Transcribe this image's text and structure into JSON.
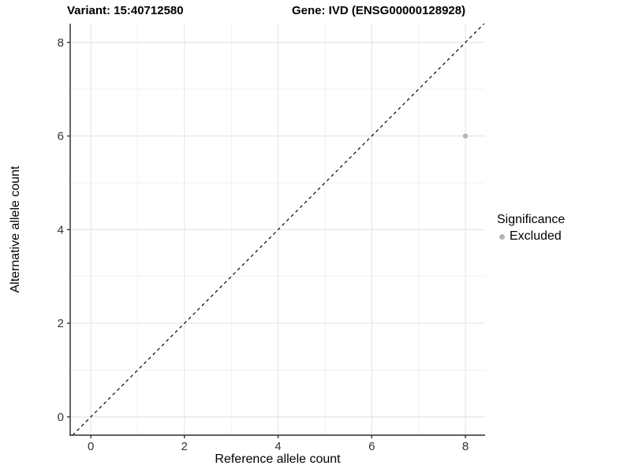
{
  "header": {
    "variant_title": "Variant: 15:40712580",
    "gene_title": "Gene: IVD (ENSG00000128928)"
  },
  "chart_data": {
    "type": "scatter",
    "xlabel": "Reference allele count",
    "ylabel": "Alternative allele count",
    "xlim": [
      -0.44,
      8.42
    ],
    "ylim": [
      -0.39,
      8.4
    ],
    "xticks": [
      0,
      2,
      4,
      6,
      8
    ],
    "yticks": [
      0,
      2,
      4,
      6,
      8
    ],
    "minor_ticks": [
      1,
      3,
      5,
      7
    ],
    "grid": true,
    "points": [
      {
        "x": 8,
        "y": 6,
        "significance": "Excluded"
      }
    ],
    "identity_line": {
      "style": "dashed",
      "slope": 1,
      "intercept": 0,
      "color": "#000000"
    },
    "legend": {
      "title": "Significance",
      "position": "right",
      "items": [
        {
          "label": "Excluded",
          "color": "#b4b4b4"
        }
      ]
    },
    "colors": {
      "point": "#b4b4b4",
      "grid_major": "#e6e6e6",
      "grid_minor": "#f0f0f0",
      "axis": "#4a4a4a",
      "tick": "#333333",
      "tick_text": "#333333"
    }
  }
}
